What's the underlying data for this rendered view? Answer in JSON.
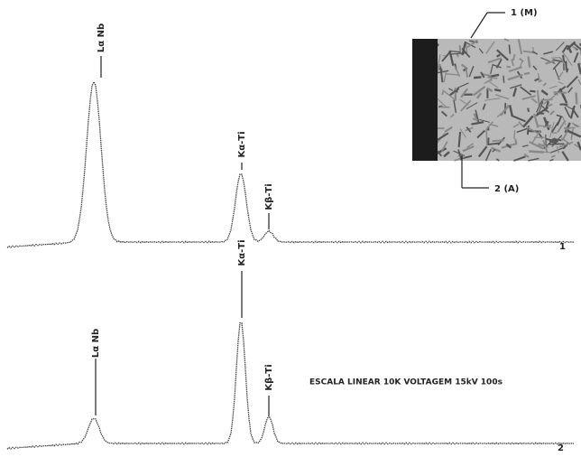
{
  "spectra": [
    {
      "label": "1",
      "peaks": [
        {
          "label": "Lα Nb"
        },
        {
          "label": "Kα-Ti"
        },
        {
          "label": "Kβ-Ti"
        }
      ]
    },
    {
      "label": "2",
      "peaks": [
        {
          "label": "Lα Nb"
        },
        {
          "label": "Kα-Ti"
        },
        {
          "label": "Kβ-Ti"
        }
      ]
    }
  ],
  "inset": {
    "labels": [
      "1 (M)",
      "2 (A)"
    ]
  },
  "caption": "ESCALA LINEAR 10K VOLTAGEM 15kV 100s"
}
